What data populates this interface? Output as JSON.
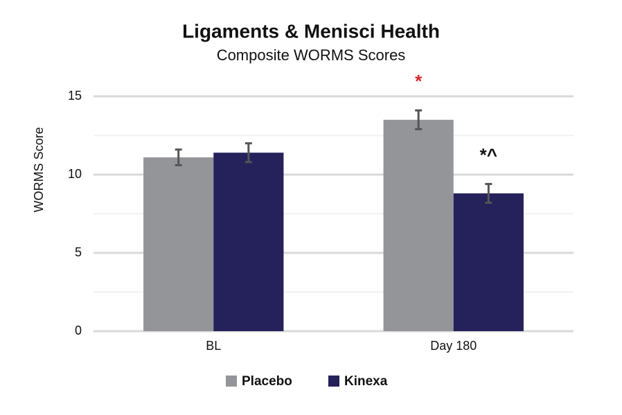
{
  "chart_data": {
    "type": "bar",
    "title": "Ligaments & Menisci Health",
    "subtitle": "Composite WORMS Scores",
    "y_label": "WORMS Score",
    "categories": [
      "BL",
      "Day 180"
    ],
    "series": [
      {
        "name": "Placebo",
        "color": "#939598",
        "values": [
          11.1,
          13.5
        ],
        "errors": [
          0.5,
          0.6
        ]
      },
      {
        "name": "Kinexa",
        "color": "#24215b",
        "values": [
          11.4,
          8.8
        ],
        "errors": [
          0.6,
          0.6
        ]
      }
    ],
    "annotations": [
      {
        "text": "*",
        "series": 0,
        "category": 1,
        "color": "#d7282f"
      },
      {
        "text": "*^",
        "series": 1,
        "category": 1,
        "color": "#111111"
      }
    ],
    "ylim": [
      0,
      15
    ],
    "yticks": [
      0,
      5,
      10,
      15
    ],
    "minor_grid": [
      2.5,
      7.5,
      12.5
    ],
    "grid": true,
    "legend": "bottom"
  }
}
